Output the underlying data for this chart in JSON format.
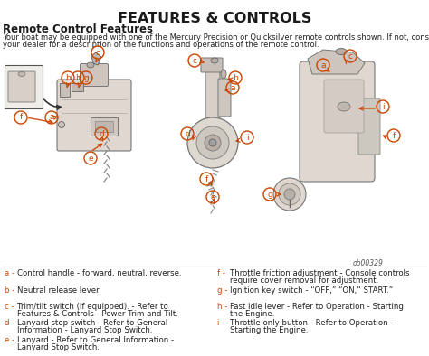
{
  "title": "FEATURES & CONTROLS",
  "subtitle": "Remote Control Features",
  "body_line1": "Your boat may be equipped with one of the Mercury Precision or Quicksilver remote controls shown. If not, consult",
  "body_line2": "your dealer for a description of the functions and operations of the remote control.",
  "legend_left": [
    [
      "a",
      "Control handle - forward, neutral, reverse."
    ],
    [
      "b",
      "Neutral release lever"
    ],
    [
      "c",
      "Trim/tilt switch (if equipped). - Refer to",
      "Features & Controls - Power Trim and Tilt."
    ],
    [
      "d",
      "Lanyard stop switch - Refer to General",
      "Information - Lanyard Stop Switch."
    ],
    [
      "e",
      "Lanyard - Refer to General Information -",
      "Lanyard Stop Switch."
    ]
  ],
  "legend_right": [
    [
      "f",
      "Throttle friction adjustment - Console controls",
      "require cover removal for adjustment."
    ],
    [
      "g",
      "Ignition key switch - “OFF,” “ON,” START.”"
    ],
    [
      "h",
      "Fast idle lever - Refer to Operation - Starting",
      "the Engine."
    ],
    [
      "i",
      "Throttle only button - Refer to Operation -",
      "Starting the Engine."
    ]
  ],
  "ob_code": "ob00329",
  "bg_color": "#ffffff",
  "title_color": "#1a1a1a",
  "body_color": "#222222",
  "legend_letter_color": "#cc4400",
  "legend_text_color": "#222222",
  "diagram_bg": "#ffffff",
  "line_color": "#888888",
  "label_circle_color": "#cc4400"
}
